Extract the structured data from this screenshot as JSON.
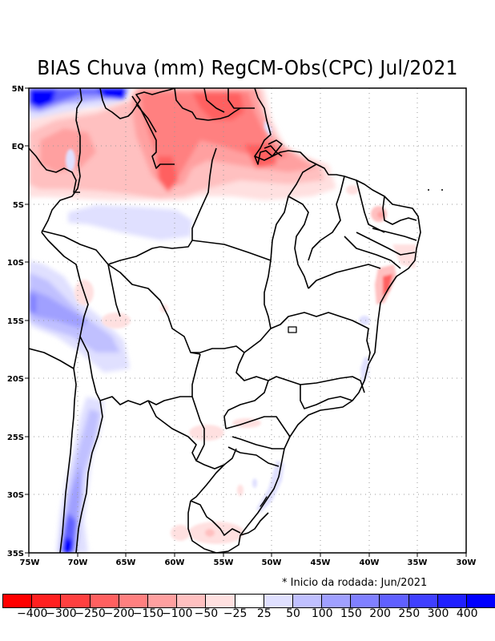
{
  "title": "BIAS Chuva (mm) RegCM-Obs(CPC) Jul/2021",
  "footnote": "* Inicio da rodada: Jun/2021",
  "map": {
    "region": "Brazil / South America",
    "variable": "Precipitation bias (mm)",
    "lon_range": [
      -75,
      -30
    ],
    "lat_range": [
      -35,
      5
    ],
    "lat_ticks": [
      "5N",
      "EQ",
      "5S",
      "10S",
      "15S",
      "20S",
      "25S",
      "30S",
      "35S"
    ],
    "lon_ticks": [
      "75W",
      "70W",
      "65W",
      "60W",
      "55W",
      "50W",
      "45W",
      "40W",
      "35W",
      "30W"
    ],
    "gridlines": "dotted"
  },
  "colorbar": {
    "labels": [
      "-400",
      "-300",
      "-250",
      "-200",
      "-150",
      "-100",
      "-50",
      "-25",
      "25",
      "50",
      "100",
      "150",
      "200",
      "250",
      "300",
      "400"
    ],
    "colors": [
      "#ff0000",
      "#ff2020",
      "#ff4040",
      "#ff6060",
      "#ff8080",
      "#ffa0a0",
      "#ffc0c0",
      "#ffe0e0",
      "#ffffff",
      "#e0e0ff",
      "#c0c0ff",
      "#a0a0ff",
      "#8080ff",
      "#6060ff",
      "#4040ff",
      "#2020ff",
      "#0000ff"
    ]
  },
  "features": {
    "red_bias": [
      "Northern Amazon / Roraima / Amapá / Pará (strong negative bias up to -200)",
      "Northern coast of Maranhão",
      "Eastern Northeast coast (Alagoas/Sergipe)"
    ],
    "blue_bias": [
      "Northwest corner near 5N 75W (up to +400)",
      "Andes Peru/Bolivia",
      "Chile Andes south of 25S",
      "Southern Amazon band near 7S"
    ]
  }
}
